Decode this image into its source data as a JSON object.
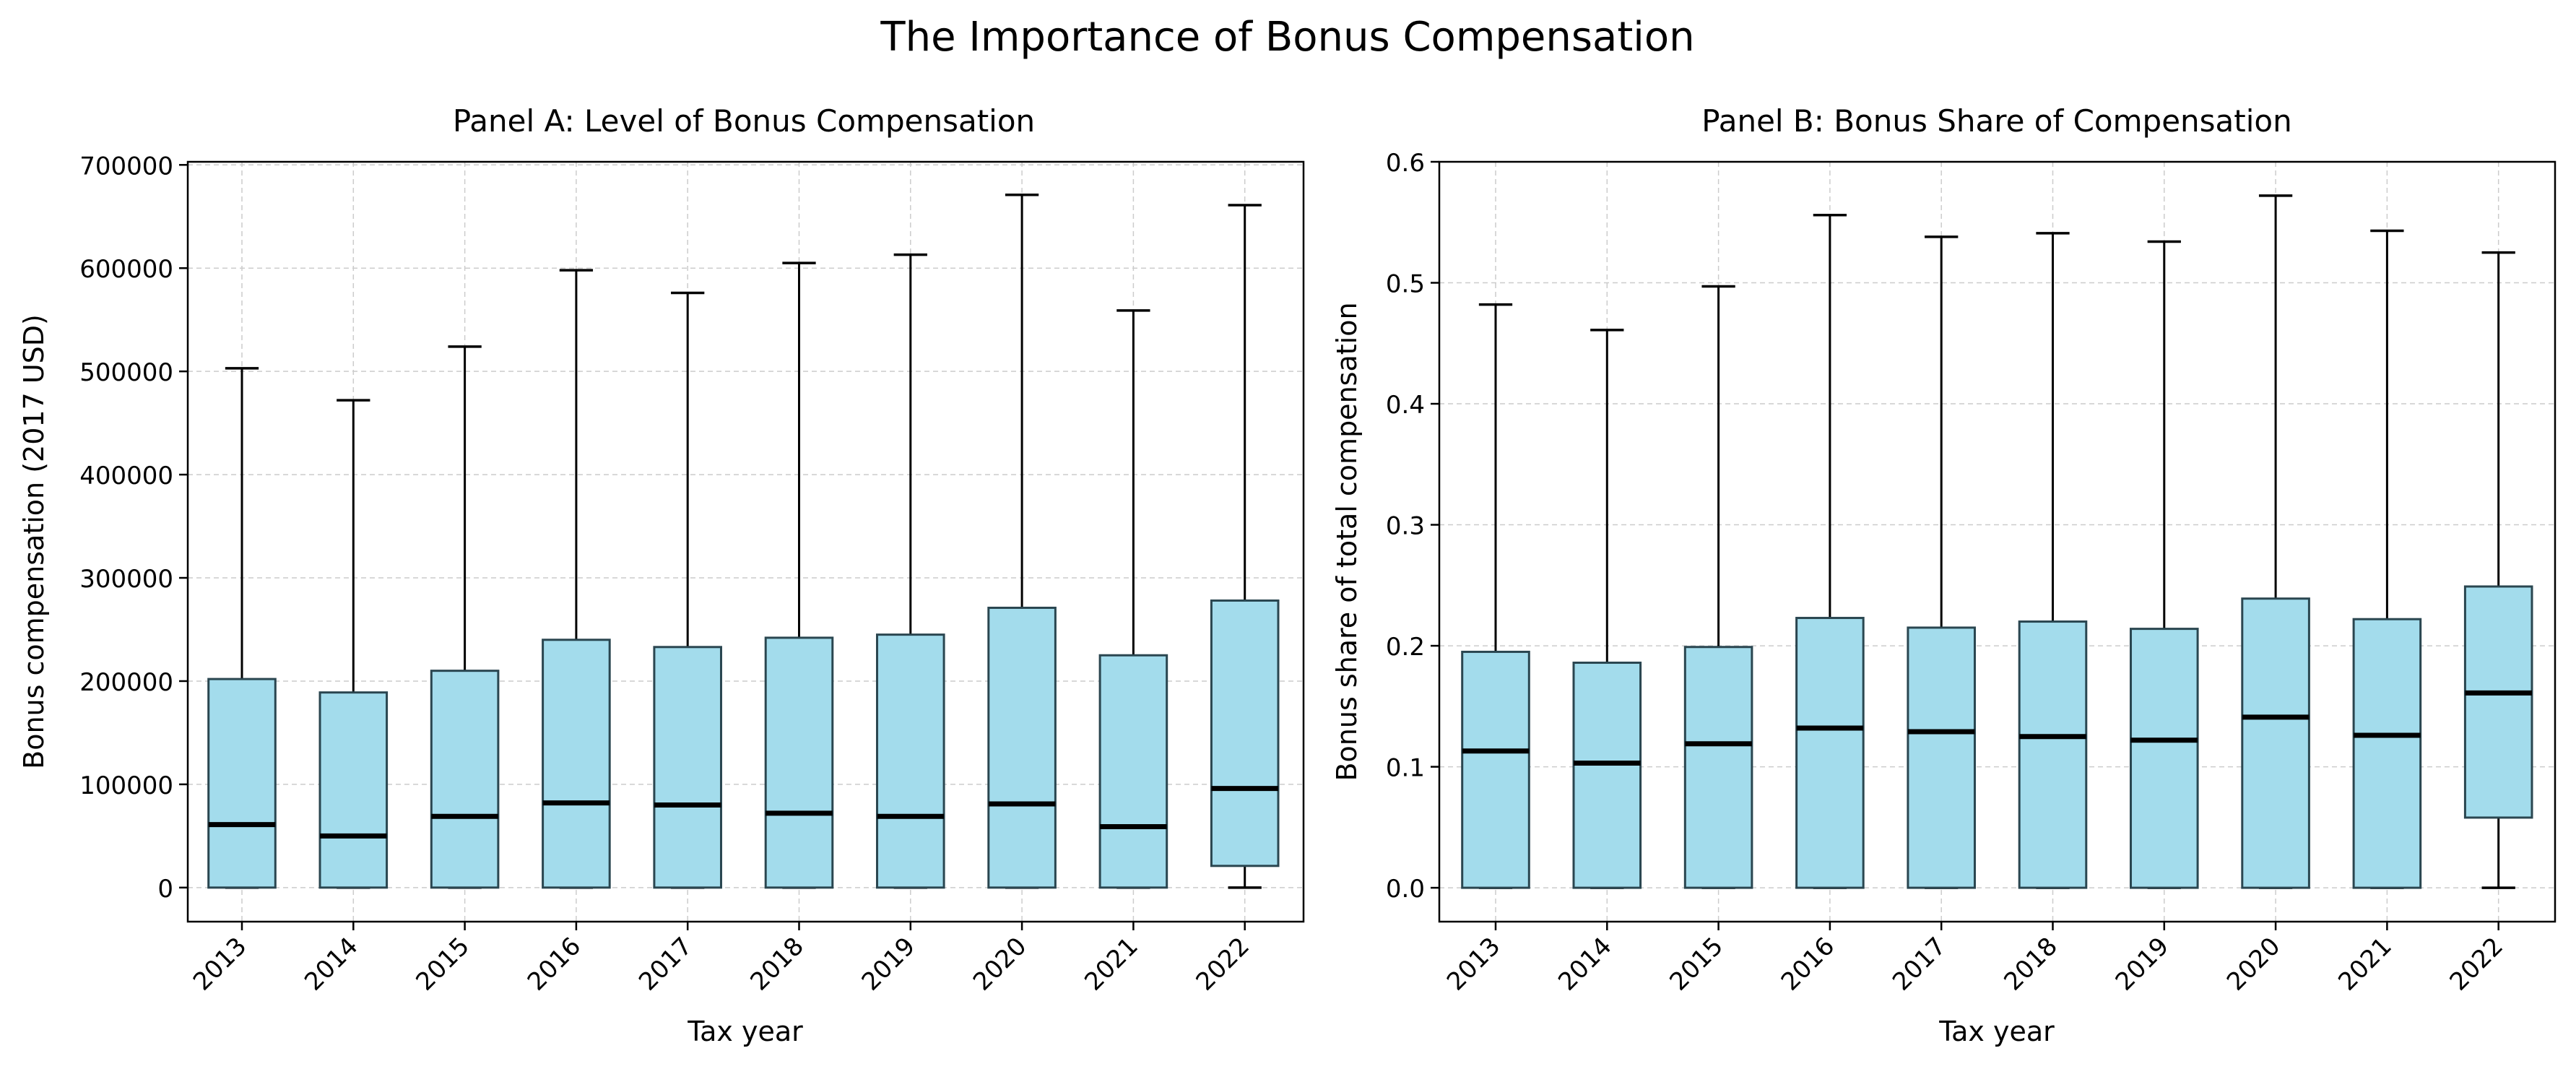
{
  "suptitle": "The Importance of Bonus Compensation",
  "colors": {
    "box_fill": "#a3dcec",
    "box_edge": "#2a4650",
    "median": "#000000",
    "grid": "#cccccc",
    "axis": "#000000"
  },
  "chart_data": [
    {
      "type": "boxplot",
      "title": "Panel A: Level of Bonus Compensation",
      "xlabel": "Tax year",
      "ylabel": "Bonus compensation (2017 USD)",
      "ylim": [
        -33000,
        703000
      ],
      "yticks": [
        0,
        100000,
        200000,
        300000,
        400000,
        500000,
        600000,
        700000
      ],
      "ytick_labels": [
        "0",
        "100000",
        "200000",
        "300000",
        "400000",
        "500000",
        "600000",
        "700000"
      ],
      "grid": true,
      "categories": [
        "2013",
        "2014",
        "2015",
        "2016",
        "2017",
        "2018",
        "2019",
        "2020",
        "2021",
        "2022"
      ],
      "boxes": [
        {
          "whislo": 0,
          "q1": 0,
          "med": 61000,
          "q3": 202000,
          "whishi": 503000
        },
        {
          "whislo": 0,
          "q1": 0,
          "med": 50000,
          "q3": 189000,
          "whishi": 472000
        },
        {
          "whislo": 0,
          "q1": 0,
          "med": 69000,
          "q3": 210000,
          "whishi": 524000
        },
        {
          "whislo": 0,
          "q1": 0,
          "med": 82000,
          "q3": 240000,
          "whishi": 598000
        },
        {
          "whislo": 0,
          "q1": 0,
          "med": 80000,
          "q3": 233000,
          "whishi": 576000
        },
        {
          "whislo": 0,
          "q1": 0,
          "med": 72000,
          "q3": 242000,
          "whishi": 605000
        },
        {
          "whislo": 0,
          "q1": 0,
          "med": 69000,
          "q3": 245000,
          "whishi": 613000
        },
        {
          "whislo": 0,
          "q1": 0,
          "med": 81000,
          "q3": 271000,
          "whishi": 671000
        },
        {
          "whislo": 0,
          "q1": 0,
          "med": 59000,
          "q3": 225000,
          "whishi": 559000
        },
        {
          "whislo": 0,
          "q1": 21000,
          "med": 96000,
          "q3": 278000,
          "whishi": 661000
        }
      ]
    },
    {
      "type": "boxplot",
      "title": "Panel B: Bonus Share of Compensation",
      "xlabel": "Tax year",
      "ylabel": "Bonus share of total compensation",
      "ylim": [
        -0.028,
        0.6
      ],
      "yticks": [
        0.0,
        0.1,
        0.2,
        0.3,
        0.4,
        0.5,
        0.6
      ],
      "ytick_labels": [
        "0.0",
        "0.1",
        "0.2",
        "0.3",
        "0.4",
        "0.5",
        "0.6"
      ],
      "grid": true,
      "categories": [
        "2013",
        "2014",
        "2015",
        "2016",
        "2017",
        "2018",
        "2019",
        "2020",
        "2021",
        "2022"
      ],
      "boxes": [
        {
          "whislo": 0,
          "q1": 0,
          "med": 0.113,
          "q3": 0.195,
          "whishi": 0.482
        },
        {
          "whislo": 0,
          "q1": 0,
          "med": 0.103,
          "q3": 0.186,
          "whishi": 0.461
        },
        {
          "whislo": 0,
          "q1": 0,
          "med": 0.119,
          "q3": 0.199,
          "whishi": 0.497
        },
        {
          "whislo": 0,
          "q1": 0,
          "med": 0.132,
          "q3": 0.223,
          "whishi": 0.556
        },
        {
          "whislo": 0,
          "q1": 0,
          "med": 0.129,
          "q3": 0.215,
          "whishi": 0.538
        },
        {
          "whislo": 0,
          "q1": 0,
          "med": 0.125,
          "q3": 0.22,
          "whishi": 0.541
        },
        {
          "whislo": 0,
          "q1": 0,
          "med": 0.122,
          "q3": 0.214,
          "whishi": 0.534
        },
        {
          "whislo": 0,
          "q1": 0,
          "med": 0.141,
          "q3": 0.239,
          "whishi": 0.572
        },
        {
          "whislo": 0,
          "q1": 0,
          "med": 0.126,
          "q3": 0.222,
          "whishi": 0.543
        },
        {
          "whislo": 0,
          "q1": 0.058,
          "med": 0.161,
          "q3": 0.249,
          "whishi": 0.525
        }
      ]
    }
  ]
}
